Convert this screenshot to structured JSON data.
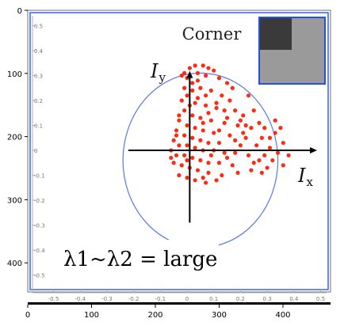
{
  "chart_data": {
    "type": "scatter",
    "title": "Corner",
    "annotation": "λ1~λ2 = large",
    "x_axis_label": "I",
    "x_axis_subscript": "x",
    "y_axis_label": "I",
    "y_axis_subscript": "y",
    "colors": {
      "points": "#ff2a14",
      "ellipse": "#5a78e6",
      "frame": "#3060ff",
      "inner_axes": "#000000"
    },
    "frame_ticks": {
      "x": [
        "0",
        "100",
        "200",
        "300",
        "400"
      ],
      "y": [
        "0",
        "100",
        "200",
        "300",
        "400"
      ]
    },
    "inner_ticks": {
      "x": [
        "-0.5",
        "-0.4",
        "-0.3",
        "-0.2",
        "-0.1",
        "0",
        "0.1",
        "0.2",
        "0.3",
        "0.4",
        "0.5"
      ],
      "y": [
        "0.5",
        "0.4",
        "0.3",
        "0.2",
        "0.1",
        "0",
        "-0.1",
        "-0.2",
        "-0.3",
        "-0.4",
        "-0.5"
      ]
    },
    "ellipse": {
      "cx": 0.05,
      "cy": -0.04,
      "rx": 0.29,
      "ry": 0.35
    },
    "points": [
      [
        0.01,
        0.33
      ],
      [
        0.03,
        0.34
      ],
      [
        0.06,
        0.34
      ],
      [
        0.08,
        0.33
      ],
      [
        0.1,
        0.32
      ],
      [
        0.04,
        0.31
      ],
      [
        0.07,
        0.3
      ],
      [
        0.12,
        0.29
      ],
      [
        0.15,
        0.27
      ],
      [
        0.0,
        0.29
      ],
      [
        0.02,
        0.27
      ],
      [
        -0.01,
        0.25
      ],
      [
        0.05,
        0.25
      ],
      [
        0.09,
        0.24
      ],
      [
        0.13,
        0.22
      ],
      [
        0.16,
        0.2
      ],
      [
        0.0,
        0.22
      ],
      [
        -0.02,
        0.2
      ],
      [
        0.03,
        0.19
      ],
      [
        0.07,
        0.18
      ],
      [
        0.11,
        0.17
      ],
      [
        0.18,
        0.16
      ],
      [
        0.21,
        0.14
      ],
      [
        -0.01,
        0.16
      ],
      [
        0.02,
        0.14
      ],
      [
        0.05,
        0.13
      ],
      [
        0.09,
        0.12
      ],
      [
        0.14,
        0.11
      ],
      [
        0.19,
        0.1
      ],
      [
        0.24,
        0.09
      ],
      [
        -0.03,
        0.12
      ],
      [
        0.0,
        0.1
      ],
      [
        0.03,
        0.09
      ],
      [
        0.06,
        0.08
      ],
      [
        0.1,
        0.07
      ],
      [
        0.16,
        0.06
      ],
      [
        0.22,
        0.05
      ],
      [
        0.28,
        0.05
      ],
      [
        -0.04,
        0.08
      ],
      [
        -0.01,
        0.06
      ],
      [
        0.02,
        0.05
      ],
      [
        0.05,
        0.04
      ],
      [
        0.08,
        0.03
      ],
      [
        0.12,
        0.03
      ],
      [
        0.2,
        0.02
      ],
      [
        0.26,
        0.02
      ],
      [
        0.31,
        0.01
      ],
      [
        -0.05,
        0.04
      ],
      [
        -0.03,
        0.02
      ],
      [
        0.0,
        0.02
      ],
      [
        0.03,
        0.01
      ],
      [
        0.06,
        0.0
      ],
      [
        0.1,
        0.0
      ],
      [
        0.14,
        -0.01
      ],
      [
        0.18,
        -0.01
      ],
      [
        0.23,
        -0.02
      ],
      [
        0.29,
        -0.02
      ],
      [
        0.34,
        -0.01
      ],
      [
        -0.06,
        0.0
      ],
      [
        -0.04,
        -0.02
      ],
      [
        -0.01,
        -0.02
      ],
      [
        0.02,
        -0.03
      ],
      [
        0.05,
        -0.04
      ],
      [
        0.08,
        -0.05
      ],
      [
        0.12,
        -0.05
      ],
      [
        0.17,
        -0.06
      ],
      [
        0.25,
        -0.05
      ],
      [
        0.32,
        -0.04
      ],
      [
        -0.05,
        -0.05
      ],
      [
        -0.02,
        -0.06
      ],
      [
        0.01,
        -0.07
      ],
      [
        0.04,
        -0.08
      ],
      [
        0.08,
        -0.09
      ],
      [
        0.13,
        -0.1
      ],
      [
        0.19,
        -0.09
      ],
      [
        -0.03,
        -0.1
      ],
      [
        0.0,
        -0.11
      ],
      [
        0.03,
        -0.12
      ],
      [
        0.07,
        -0.13
      ],
      [
        0.11,
        -0.12
      ],
      [
        0.2,
        0.12
      ],
      [
        0.25,
        0.16
      ],
      [
        0.29,
        0.09
      ],
      [
        0.33,
        0.07
      ],
      [
        0.36,
        0.03
      ],
      [
        0.38,
        -0.02
      ],
      [
        0.36,
        -0.06
      ],
      [
        0.3,
        -0.07
      ],
      [
        0.27,
        0.11
      ],
      [
        0.23,
        0.22
      ],
      [
        0.17,
        0.25
      ],
      [
        -0.02,
        0.3
      ],
      [
        0.01,
        0.18
      ],
      [
        -0.03,
        0.14
      ],
      [
        0.04,
        0.21
      ],
      [
        0.08,
        0.15
      ],
      [
        0.12,
        0.08
      ],
      [
        0.15,
        0.13
      ],
      [
        0.21,
        0.07
      ],
      [
        0.27,
        -0.04
      ],
      [
        0.33,
        0.12
      ],
      [
        0.35,
        0.09
      ],
      [
        0.24,
        -0.08
      ],
      [
        0.15,
        -0.03
      ],
      [
        0.09,
        -0.02
      ],
      [
        -0.04,
        0.06
      ],
      [
        0.0,
        -0.04
      ],
      [
        0.06,
        0.11
      ],
      [
        0.11,
        0.19
      ],
      [
        0.18,
        0.04
      ],
      [
        0.04,
        0.28
      ],
      [
        -0.01,
        0.31
      ],
      [
        0.07,
        0.22
      ],
      [
        0.02,
        0.24
      ],
      [
        0.14,
        0.16
      ],
      [
        0.22,
        0.1
      ],
      [
        0.31,
        0.05
      ],
      [
        0.28,
        -0.09
      ],
      [
        -0.06,
        -0.03
      ],
      [
        0.06,
        -0.11
      ]
    ]
  }
}
